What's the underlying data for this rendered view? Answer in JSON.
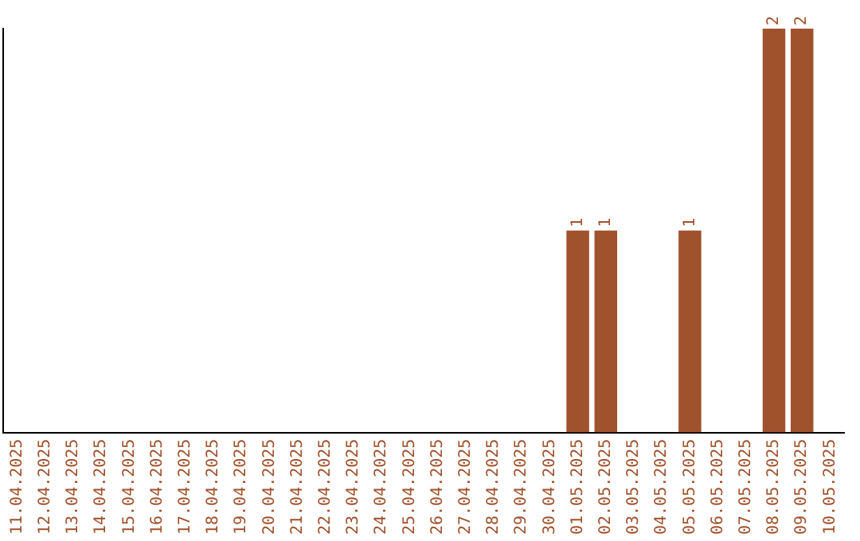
{
  "chart_data": {
    "type": "bar",
    "relative": false,
    "categories": [
      "11.04.2025",
      "12.04.2025",
      "13.04.2025",
      "14.04.2025",
      "15.04.2025",
      "16.04.2025",
      "17.04.2025",
      "18.04.2025",
      "19.04.2025",
      "20.04.2025",
      "21.04.2025",
      "22.04.2025",
      "23.04.2025",
      "24.04.2025",
      "25.04.2025",
      "26.04.2025",
      "27.04.2025",
      "28.04.2025",
      "29.04.2025",
      "30.04.2025",
      "01.05.2025",
      "02.05.2025",
      "03.05.2025",
      "04.05.2025",
      "05.05.2025",
      "06.05.2025",
      "07.05.2025",
      "08.05.2025",
      "09.05.2025",
      "10.05.2025"
    ],
    "values": [
      null,
      null,
      null,
      null,
      null,
      null,
      null,
      null,
      null,
      null,
      null,
      null,
      null,
      null,
      null,
      null,
      null,
      null,
      null,
      null,
      1,
      1,
      null,
      null,
      1,
      null,
      null,
      2,
      2,
      null
    ],
    "color": "#a0522d",
    "data_labels": true,
    "grid": false,
    "legend": false,
    "tick_labels": "x"
  }
}
